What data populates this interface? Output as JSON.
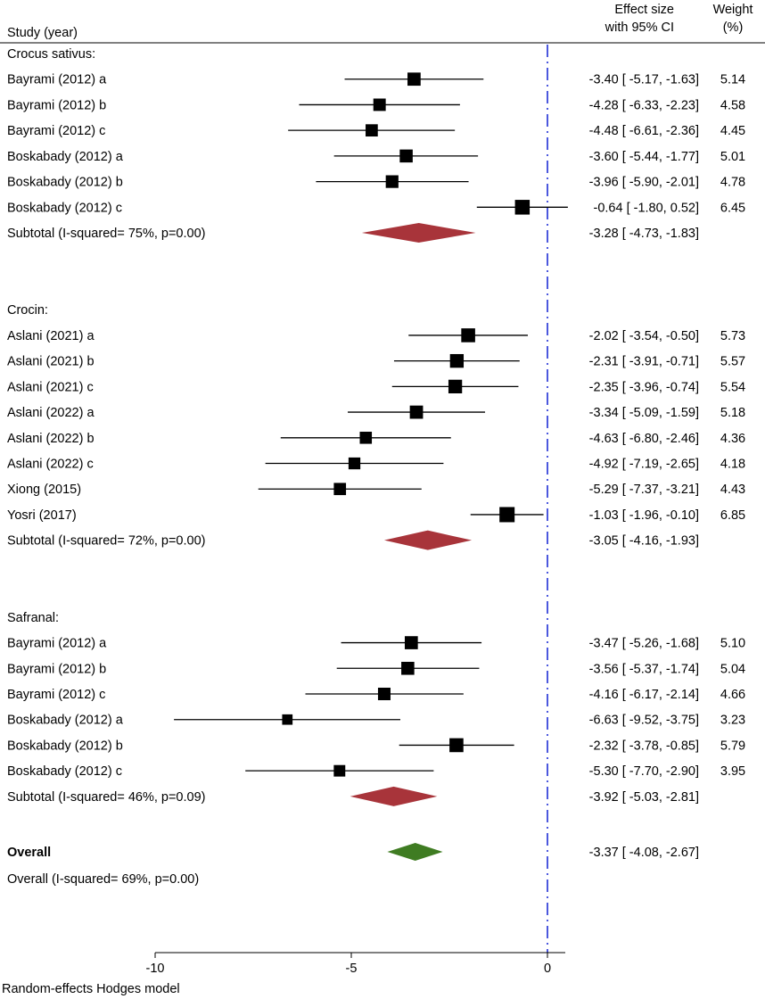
{
  "chart_data": {
    "type": "forest",
    "columns": {
      "study": "Study (year)",
      "effect_line1": "Effect size",
      "effect_line2": "with 95% CI",
      "weight_line1": "Weight",
      "weight_line2": "(%)"
    },
    "x_axis": {
      "range": [
        -10,
        0
      ],
      "ticks": [
        -10,
        -5,
        0
      ]
    },
    "reference_line": 0,
    "footer": "Random-effects Hodges model",
    "groups": [
      {
        "name": "Crocus sativus:",
        "studies": [
          {
            "label": "Bayrami (2012) a",
            "es": -3.4,
            "lo": -5.17,
            "hi": -1.63,
            "ci_text": "-3.40 [ -5.17, -1.63]",
            "weight": "5.14"
          },
          {
            "label": "Bayrami (2012) b",
            "es": -4.28,
            "lo": -6.33,
            "hi": -2.23,
            "ci_text": "-4.28 [ -6.33, -2.23]",
            "weight": "4.58"
          },
          {
            "label": "Bayrami (2012) c",
            "es": -4.48,
            "lo": -6.61,
            "hi": -2.36,
            "ci_text": "-4.48 [ -6.61, -2.36]",
            "weight": "4.45"
          },
          {
            "label": "Boskabady (2012) a",
            "es": -3.6,
            "lo": -5.44,
            "hi": -1.77,
            "ci_text": "-3.60 [ -5.44, -1.77]",
            "weight": "5.01"
          },
          {
            "label": "Boskabady (2012) b",
            "es": -3.96,
            "lo": -5.9,
            "hi": -2.01,
            "ci_text": "-3.96 [ -5.90, -2.01]",
            "weight": "4.78"
          },
          {
            "label": "Boskabady (2012) c",
            "es": -0.64,
            "lo": -1.8,
            "hi": 0.52,
            "ci_text": "-0.64 [ -1.80,  0.52]",
            "weight": "6.45"
          }
        ],
        "subtotal": {
          "label": "Subtotal (I-squared= 75%, p=0.00)",
          "es": -3.28,
          "lo": -4.73,
          "hi": -1.83,
          "ci_text": "-3.28 [ -4.73, -1.83]"
        }
      },
      {
        "name": "Crocin:",
        "studies": [
          {
            "label": "Aslani (2021) a",
            "es": -2.02,
            "lo": -3.54,
            "hi": -0.5,
            "ci_text": "-2.02 [ -3.54, -0.50]",
            "weight": "5.73"
          },
          {
            "label": "Aslani (2021) b",
            "es": -2.31,
            "lo": -3.91,
            "hi": -0.71,
            "ci_text": "-2.31 [ -3.91, -0.71]",
            "weight": "5.57"
          },
          {
            "label": "Aslani (2021) c",
            "es": -2.35,
            "lo": -3.96,
            "hi": -0.74,
            "ci_text": "-2.35 [ -3.96, -0.74]",
            "weight": "5.54"
          },
          {
            "label": "Aslani (2022) a",
            "es": -3.34,
            "lo": -5.09,
            "hi": -1.59,
            "ci_text": "-3.34 [ -5.09, -1.59]",
            "weight": "5.18"
          },
          {
            "label": "Aslani (2022) b",
            "es": -4.63,
            "lo": -6.8,
            "hi": -2.46,
            "ci_text": "-4.63 [ -6.80, -2.46]",
            "weight": "4.36"
          },
          {
            "label": "Aslani (2022) c",
            "es": -4.92,
            "lo": -7.19,
            "hi": -2.65,
            "ci_text": "-4.92 [ -7.19, -2.65]",
            "weight": "4.18"
          },
          {
            "label": "Xiong (2015)",
            "es": -5.29,
            "lo": -7.37,
            "hi": -3.21,
            "ci_text": "-5.29 [ -7.37, -3.21]",
            "weight": "4.43"
          },
          {
            "label": "Yosri (2017)",
            "es": -1.03,
            "lo": -1.96,
            "hi": -0.1,
            "ci_text": "-1.03 [ -1.96, -0.10]",
            "weight": "6.85"
          }
        ],
        "subtotal": {
          "label": "Subtotal (I-squared= 72%, p=0.00)",
          "es": -3.05,
          "lo": -4.16,
          "hi": -1.93,
          "ci_text": "-3.05 [ -4.16, -1.93]"
        }
      },
      {
        "name": "Safranal:",
        "studies": [
          {
            "label": "Bayrami (2012) a",
            "es": -3.47,
            "lo": -5.26,
            "hi": -1.68,
            "ci_text": "-3.47 [ -5.26, -1.68]",
            "weight": "5.10"
          },
          {
            "label": "Bayrami (2012) b",
            "es": -3.56,
            "lo": -5.37,
            "hi": -1.74,
            "ci_text": "-3.56 [ -5.37, -1.74]",
            "weight": "5.04"
          },
          {
            "label": "Bayrami (2012) c",
            "es": -4.16,
            "lo": -6.17,
            "hi": -2.14,
            "ci_text": "-4.16 [ -6.17, -2.14]",
            "weight": "4.66"
          },
          {
            "label": "Boskabady (2012) a",
            "es": -6.63,
            "lo": -9.52,
            "hi": -3.75,
            "ci_text": "-6.63 [ -9.52, -3.75]",
            "weight": "3.23"
          },
          {
            "label": "Boskabady (2012) b",
            "es": -2.32,
            "lo": -3.78,
            "hi": -0.85,
            "ci_text": "-2.32 [ -3.78, -0.85]",
            "weight": "5.79"
          },
          {
            "label": "Boskabady (2012) c",
            "es": -5.3,
            "lo": -7.7,
            "hi": -2.9,
            "ci_text": "-5.30 [ -7.70, -2.90]",
            "weight": "3.95"
          }
        ],
        "subtotal": {
          "label": "Subtotal (I-squared= 46%, p=0.09)",
          "es": -3.92,
          "lo": -5.03,
          "hi": -2.81,
          "ci_text": "-3.92 [ -5.03, -2.81]"
        }
      }
    ],
    "overall": {
      "label": "Overall",
      "het_label": "Overall (I-squared= 69%, p=0.00)",
      "es": -3.37,
      "lo": -4.08,
      "hi": -2.67,
      "ci_text": "-3.37 [ -4.08, -2.67]"
    },
    "colors": {
      "subtotal_diamond": "#a8343a",
      "overall_diamond": "#3f7c22",
      "reference_line": "#1f2fd6",
      "marker": "#000000"
    }
  }
}
